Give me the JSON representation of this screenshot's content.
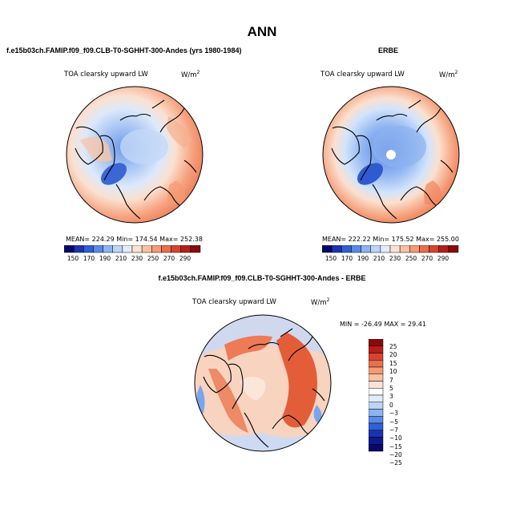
{
  "page": {
    "title": "ANN"
  },
  "panels": [
    {
      "id": "model",
      "case_name": "f.e15b03ch.FAMIP.f09_f09.CLB-T0-SGHHT-300-Andes (yrs 1980-1984)",
      "variable": "TOA clearsky upward LW",
      "units": "W/m",
      "units_sup": "2",
      "stats": "MEAN= 224.29   Min= 174.54   Max= 252.38",
      "colorbar": {
        "labels": [
          "150",
          "170",
          "190",
          "210",
          "230",
          "250",
          "270",
          "290"
        ],
        "colors": [
          "#08086b",
          "#1a33b0",
          "#3060d8",
          "#5a8ae6",
          "#8db4f0",
          "#bcd4f8",
          "#e1ecfb",
          "#fbe3d4",
          "#f9c1a3",
          "#f39b74",
          "#e9704c",
          "#d6442e",
          "#b51f19",
          "#8a0a0b"
        ]
      }
    },
    {
      "id": "obs",
      "case_name": "ERBE",
      "variable": "TOA clearsky upward LW",
      "units": "W/m",
      "units_sup": "2",
      "stats": "MEAN= 222.22   Min= 175.52   Max= 255.00",
      "colorbar": {
        "labels": [
          "150",
          "170",
          "190",
          "210",
          "230",
          "250",
          "270",
          "290"
        ],
        "colors": [
          "#08086b",
          "#1a33b0",
          "#3060d8",
          "#5a8ae6",
          "#8db4f0",
          "#bcd4f8",
          "#e1ecfb",
          "#fbe3d4",
          "#f9c1a3",
          "#f39b74",
          "#e9704c",
          "#d6442e",
          "#b51f19",
          "#8a0a0b"
        ]
      }
    },
    {
      "id": "diff",
      "case_name": "f.e15b03ch.FAMIP.f09_f09.CLB-T0-SGHHT-300-Andes - ERBE",
      "variable": "TOA clearsky upward LW",
      "units": "W/m",
      "units_sup": "2",
      "stats": "MIN = -26.49  MAX =  29.41",
      "colorbar": {
        "labels": [
          "25",
          "20",
          "15",
          "10",
          "7",
          "5",
          "3",
          "0",
          "−3",
          "−5",
          "−7",
          "−10",
          "−15",
          "−20",
          "−25"
        ],
        "colors": [
          "#8a0a0b",
          "#b51f19",
          "#d6442e",
          "#e9704c",
          "#f39b74",
          "#f9c1a3",
          "#fbe3d4",
          "#ffffff",
          "#e1ecfb",
          "#bcd4f8",
          "#8db4f0",
          "#5a8ae6",
          "#3060d8",
          "#1a33b0",
          "#0d1a8c",
          "#08086b"
        ]
      }
    }
  ]
}
